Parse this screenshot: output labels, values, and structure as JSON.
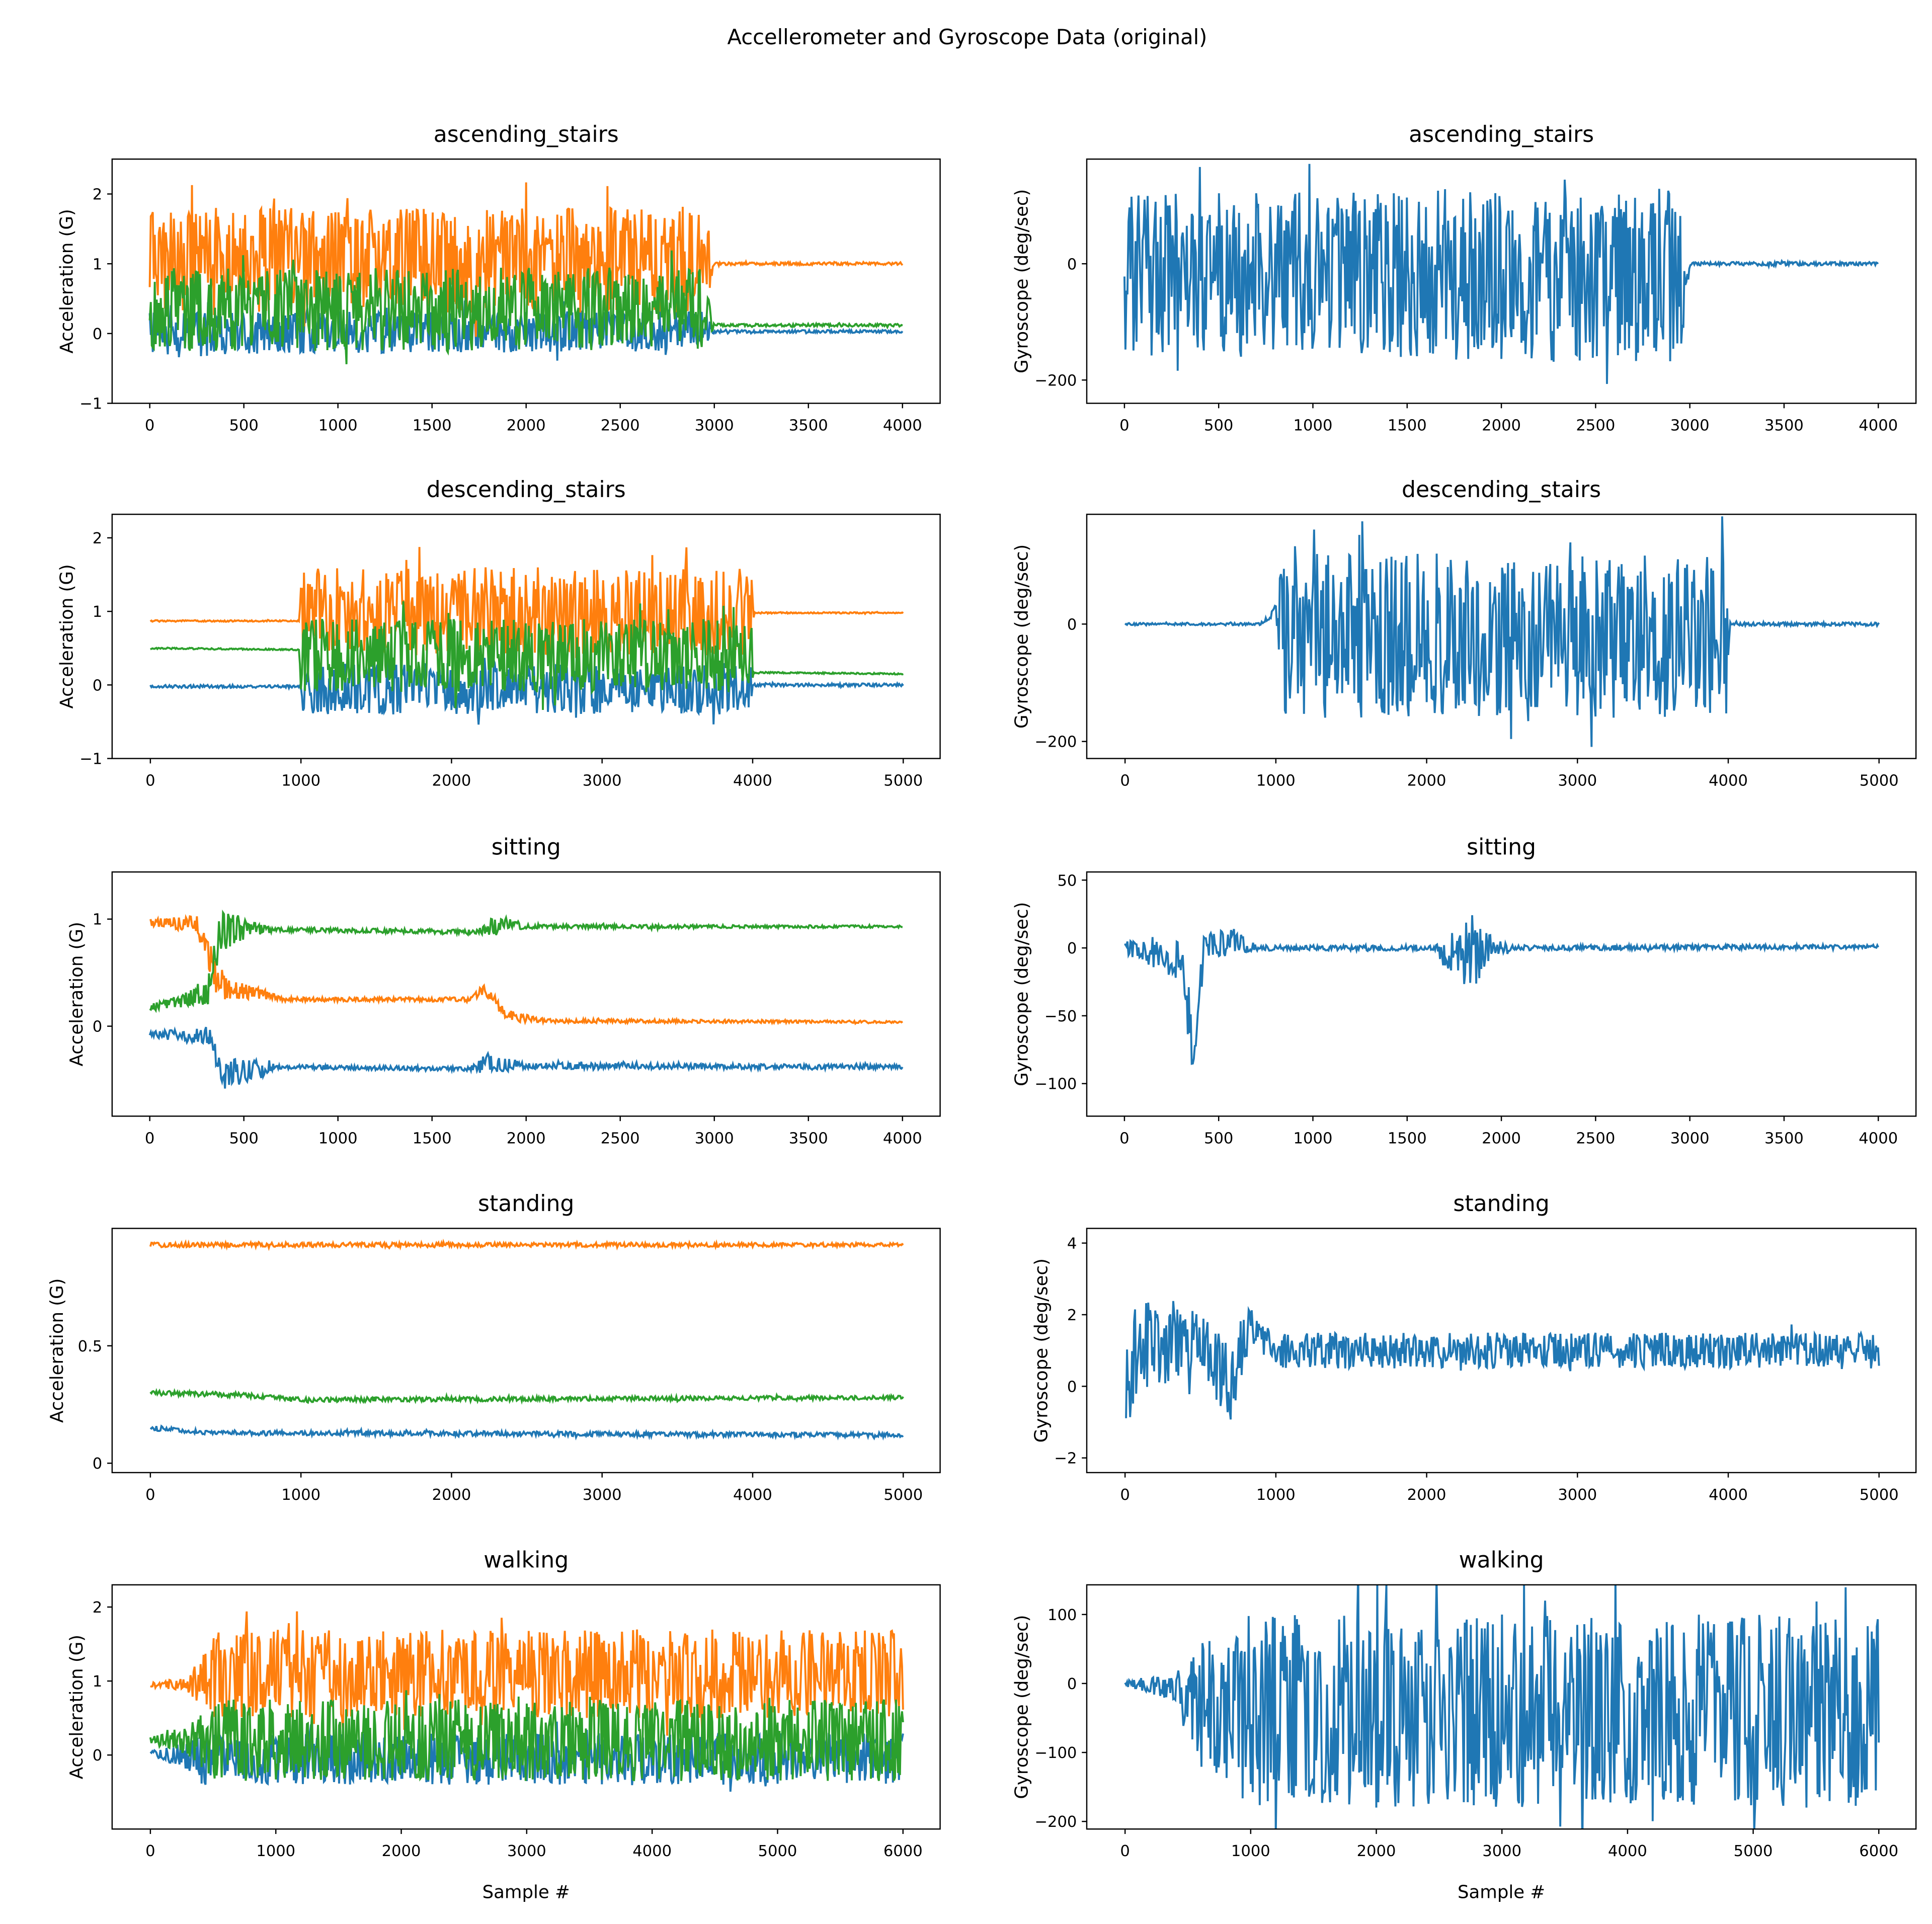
{
  "figure": {
    "title": "Accellerometer and Gyroscope Data (original)"
  },
  "colors": {
    "blue": "#1f77b4",
    "orange": "#ff7f0e",
    "green": "#2ca02c"
  },
  "chart_data": [
    {
      "type": "line",
      "title": "ascending_stairs",
      "ylabel": "Acceleration (G)",
      "xlabel": "",
      "xlim": [
        -200,
        4200
      ],
      "ylim": [
        -1,
        2.5
      ],
      "xticks": [
        0,
        500,
        1000,
        1500,
        2000,
        2500,
        3000,
        3500,
        4000
      ],
      "yticks": [
        -1,
        0,
        1,
        2
      ],
      "grid": false,
      "series": [
        {
          "color": "#1f77b4",
          "keypoints": [
            [
              0,
              0,
              0.3
            ],
            [
              2950,
              0.05,
              0.3
            ],
            [
              3000,
              0.03,
              0.02
            ],
            [
              4000,
              0.03,
              0.02
            ]
          ]
        },
        {
          "color": "#ff7f0e",
          "keypoints": [
            [
              0,
              1.05,
              0.75
            ],
            [
              2950,
              1.05,
              0.75
            ],
            [
              3000,
              1,
              0.02
            ],
            [
              4000,
              1,
              0.02
            ]
          ]
        },
        {
          "color": "#2ca02c",
          "keypoints": [
            [
              0,
              0.35,
              0.6
            ],
            [
              2950,
              0.35,
              0.6
            ],
            [
              3000,
              0.12,
              0.02
            ],
            [
              4000,
              0.12,
              0.02
            ]
          ]
        }
      ]
    },
    {
      "type": "line",
      "title": "ascending_stairs",
      "ylabel": "Gyroscope (deg/sec)",
      "xlabel": "",
      "xlim": [
        -200,
        4200
      ],
      "ylim": [
        -240,
        180
      ],
      "xticks": [
        0,
        500,
        1000,
        1500,
        2000,
        2500,
        3000,
        3500,
        4000
      ],
      "yticks": [
        -200,
        0
      ],
      "grid": false,
      "series": [
        {
          "color": "#1f77b4",
          "keypoints": [
            [
              0,
              -20,
              140
            ],
            [
              2950,
              -20,
              150
            ],
            [
              3000,
              0,
              3
            ],
            [
              4000,
              0,
              3
            ]
          ]
        }
      ]
    },
    {
      "type": "line",
      "title": "descending_stairs",
      "ylabel": "Acceleration (G)",
      "xlabel": "",
      "xlim": [
        -254,
        5245
      ],
      "ylim": [
        -1.0,
        2.32
      ],
      "xticks": [
        0,
        1000,
        2000,
        3000,
        4000,
        5000
      ],
      "yticks": [
        -1,
        0,
        1,
        2
      ],
      "grid": false,
      "series": [
        {
          "color": "#1f77b4",
          "keypoints": [
            [
              0,
              -0.02,
              0.02
            ],
            [
              1000,
              -0.02,
              0.02
            ],
            [
              1010,
              -0.05,
              0.35
            ],
            [
              3990,
              -0.05,
              0.35
            ],
            [
              4000,
              0,
              0.02
            ],
            [
              5000,
              0,
              0.02
            ]
          ]
        },
        {
          "color": "#ff7f0e",
          "keypoints": [
            [
              0,
              0.87,
              0.01
            ],
            [
              990,
              0.87,
              0.01
            ],
            [
              1000,
              1.0,
              0.6
            ],
            [
              3990,
              1.0,
              0.6
            ],
            [
              4010,
              0.98,
              0.01
            ],
            [
              5000,
              0.98,
              0.01
            ]
          ]
        },
        {
          "color": "#2ca02c",
          "keypoints": [
            [
              0,
              0.5,
              0.01
            ],
            [
              990,
              0.48,
              0.01
            ],
            [
              1000,
              0.4,
              0.5
            ],
            [
              3990,
              0.4,
              0.5
            ],
            [
              4010,
              0.17,
              0.01
            ],
            [
              5000,
              0.15,
              0.01
            ]
          ]
        }
      ]
    },
    {
      "type": "line",
      "title": "descending_stairs",
      "ylabel": "Gyroscope (deg/sec)",
      "xlabel": "",
      "xlim": [
        -254,
        5245
      ],
      "ylim": [
        -229,
        187
      ],
      "xticks": [
        0,
        1000,
        2000,
        3000,
        4000,
        5000
      ],
      "yticks": [
        -200,
        0
      ],
      "grid": false,
      "series": [
        {
          "color": "#1f77b4",
          "keypoints": [
            [
              0,
              0,
              2
            ],
            [
              900,
              0,
              2
            ],
            [
              1000,
              25,
              10
            ],
            [
              1050,
              -20,
              140
            ],
            [
              3990,
              -20,
              140
            ],
            [
              4010,
              0,
              3
            ],
            [
              5000,
              0,
              3
            ]
          ]
        }
      ]
    },
    {
      "type": "line",
      "title": "sitting",
      "ylabel": "Acceleration (G)",
      "xlabel": "",
      "xlim": [
        -200,
        4200
      ],
      "ylim": [
        -0.84,
        1.44
      ],
      "xticks": [
        0,
        500,
        1000,
        1500,
        2000,
        2500,
        3000,
        3500,
        4000
      ],
      "yticks": [
        0,
        1
      ],
      "grid": false,
      "series": [
        {
          "color": "#1f77b4",
          "keypoints": [
            [
              0,
              -0.07,
              0.03
            ],
            [
              330,
              -0.1,
              0.1
            ],
            [
              380,
              -0.45,
              0.15
            ],
            [
              600,
              -0.4,
              0.08
            ],
            [
              700,
              -0.38,
              0.02
            ],
            [
              1700,
              -0.4,
              0.02
            ],
            [
              1800,
              -0.35,
              0.1
            ],
            [
              2000,
              -0.37,
              0.03
            ],
            [
              4000,
              -0.38,
              0.02
            ]
          ]
        },
        {
          "color": "#ff7f0e",
          "keypoints": [
            [
              0,
              0.97,
              0.03
            ],
            [
              250,
              0.95,
              0.08
            ],
            [
              350,
              0.5,
              0.2
            ],
            [
              400,
              0.35,
              0.1
            ],
            [
              600,
              0.3,
              0.05
            ],
            [
              700,
              0.25,
              0.02
            ],
            [
              1700,
              0.25,
              0.02
            ],
            [
              1780,
              0.35,
              0.05
            ],
            [
              1900,
              0.1,
              0.06
            ],
            [
              2100,
              0.05,
              0.02
            ],
            [
              4000,
              0.04,
              0.01
            ]
          ]
        },
        {
          "color": "#2ca02c",
          "keypoints": [
            [
              0,
              0.17,
              0.03
            ],
            [
              300,
              0.3,
              0.1
            ],
            [
              380,
              0.9,
              0.2
            ],
            [
              600,
              0.9,
              0.04
            ],
            [
              700,
              0.9,
              0.02
            ],
            [
              1750,
              0.88,
              0.02
            ],
            [
              1850,
              0.95,
              0.1
            ],
            [
              2000,
              0.93,
              0.02
            ],
            [
              4000,
              0.93,
              0.01
            ]
          ]
        }
      ]
    },
    {
      "type": "line",
      "title": "sitting",
      "ylabel": "Gyroscope (deg/sec)",
      "xlabel": "",
      "xlim": [
        -200,
        4200
      ],
      "ylim": [
        -124,
        56
      ],
      "xticks": [
        0,
        500,
        1000,
        1500,
        2000,
        2500,
        3000,
        3500,
        4000
      ],
      "yticks": [
        -100,
        -50,
        0,
        50
      ],
      "grid": false,
      "series": [
        {
          "color": "#1f77b4",
          "keypoints": [
            [
              0,
              0,
              5
            ],
            [
              300,
              -10,
              15
            ],
            [
              370,
              -80,
              30
            ],
            [
              420,
              0,
              10
            ],
            [
              600,
              5,
              10
            ],
            [
              700,
              0,
              2
            ],
            [
              1650,
              0,
              2
            ],
            [
              1750,
              -10,
              20
            ],
            [
              1850,
              0,
              30
            ],
            [
              1950,
              0,
              8
            ],
            [
              2050,
              0,
              2
            ],
            [
              4000,
              1,
              1.5
            ]
          ]
        }
      ]
    },
    {
      "type": "line",
      "title": "standing",
      "ylabel": "Acceleration (G)",
      "xlabel": "",
      "xlim": [
        -254,
        5245
      ],
      "ylim": [
        -0.04,
        1.0
      ],
      "xticks": [
        0,
        1000,
        2000,
        3000,
        4000,
        5000
      ],
      "yticks": [
        0.0,
        0.5
      ],
      "grid": false,
      "series": [
        {
          "color": "#1f77b4",
          "keypoints": [
            [
              0,
              0.15,
              0.01
            ],
            [
              400,
              0.13,
              0.01
            ],
            [
              5000,
              0.12,
              0.01
            ]
          ]
        },
        {
          "color": "#ff7f0e",
          "keypoints": [
            [
              0,
              0.93,
              0.01
            ],
            [
              5000,
              0.93,
              0.008
            ]
          ]
        },
        {
          "color": "#2ca02c",
          "keypoints": [
            [
              0,
              0.3,
              0.01
            ],
            [
              600,
              0.29,
              0.01
            ],
            [
              1000,
              0.27,
              0.01
            ],
            [
              5000,
              0.28,
              0.008
            ]
          ]
        }
      ]
    },
    {
      "type": "line",
      "title": "standing",
      "ylabel": "Gyroscope (deg/sec)",
      "xlabel": "",
      "xlim": [
        -254,
        5245
      ],
      "ylim": [
        -2.41,
        4.41
      ],
      "xticks": [
        0,
        1000,
        2000,
        3000,
        4000,
        5000
      ],
      "yticks": [
        -2,
        0,
        2,
        4
      ],
      "grid": false,
      "series": [
        {
          "color": "#1f77b4",
          "keypoints": [
            [
              0,
              0,
              1.5
            ],
            [
              100,
              1.2,
              1.3
            ],
            [
              500,
              1.3,
              1.0
            ],
            [
              700,
              0,
              1
            ],
            [
              800,
              1.5,
              0.8
            ],
            [
              1000,
              1,
              0.5
            ],
            [
              5000,
              1,
              0.5
            ]
          ]
        }
      ]
    },
    {
      "type": "line",
      "title": "walking",
      "ylabel": "Acceleration (G)",
      "xlabel": "Sample #",
      "xlim": [
        -305,
        6296
      ],
      "ylim": [
        -1.0,
        2.3
      ],
      "xticks": [
        0,
        1000,
        2000,
        3000,
        4000,
        5000,
        6000
      ],
      "yticks": [
        0,
        1,
        2
      ],
      "grid": false,
      "series": [
        {
          "color": "#1f77b4",
          "keypoints": [
            [
              0,
              0.02,
              0.03
            ],
            [
              300,
              0,
              0.2
            ],
            [
              400,
              -0.05,
              0.35
            ],
            [
              6000,
              -0.05,
              0.35
            ]
          ]
        },
        {
          "color": "#ff7f0e",
          "keypoints": [
            [
              0,
              0.95,
              0.03
            ],
            [
              300,
              0.95,
              0.1
            ],
            [
              500,
              1.1,
              0.6
            ],
            [
              6000,
              1.1,
              0.6
            ]
          ]
        },
        {
          "color": "#2ca02c",
          "keypoints": [
            [
              0,
              0.2,
              0.05
            ],
            [
              300,
              0.2,
              0.2
            ],
            [
              500,
              0.2,
              0.55
            ],
            [
              6000,
              0.2,
              0.55
            ]
          ]
        }
      ]
    },
    {
      "type": "line",
      "title": "walking",
      "ylabel": "Gyroscope (deg/sec)",
      "xlabel": "Sample #",
      "xlim": [
        -305,
        6296
      ],
      "ylim": [
        -211,
        143
      ],
      "xticks": [
        0,
        1000,
        2000,
        3000,
        4000,
        5000,
        6000
      ],
      "yticks": [
        -200,
        -100,
        0,
        100
      ],
      "grid": false,
      "series": [
        {
          "color": "#1f77b4",
          "keypoints": [
            [
              0,
              0,
              5
            ],
            [
              400,
              -5,
              20
            ],
            [
              600,
              -30,
              90
            ],
            [
              1000,
              -40,
              140
            ],
            [
              6000,
              -40,
              140
            ]
          ]
        }
      ]
    }
  ]
}
